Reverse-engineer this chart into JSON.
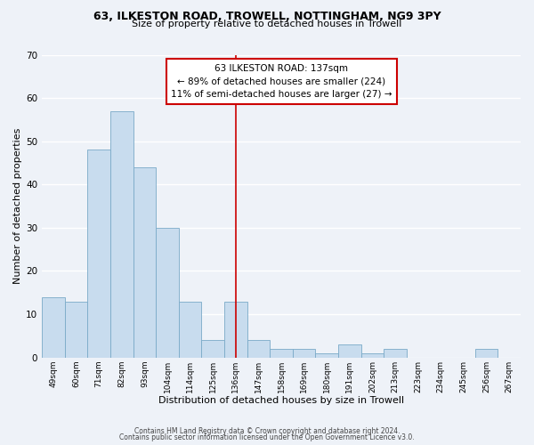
{
  "title1": "63, ILKESTON ROAD, TROWELL, NOTTINGHAM, NG9 3PY",
  "title2": "Size of property relative to detached houses in Trowell",
  "xlabel": "Distribution of detached houses by size in Trowell",
  "ylabel": "Number of detached properties",
  "bar_labels": [
    "49sqm",
    "60sqm",
    "71sqm",
    "82sqm",
    "93sqm",
    "104sqm",
    "114sqm",
    "125sqm",
    "136sqm",
    "147sqm",
    "158sqm",
    "169sqm",
    "180sqm",
    "191sqm",
    "202sqm",
    "213sqm",
    "223sqm",
    "234sqm",
    "245sqm",
    "256sqm",
    "267sqm"
  ],
  "bar_heights": [
    14,
    13,
    48,
    57,
    44,
    30,
    13,
    4,
    13,
    4,
    2,
    2,
    1,
    3,
    1,
    2,
    0,
    0,
    0,
    2,
    0
  ],
  "bar_color": "#c8dcee",
  "bar_edge_color": "#7aaac8",
  "vline_x_index": 8,
  "vline_color": "#cc0000",
  "annotation_text": "63 ILKESTON ROAD: 137sqm\n← 89% of detached houses are smaller (224)\n11% of semi-detached houses are larger (27) →",
  "annotation_box_color": "#ffffff",
  "annotation_box_edge": "#cc0000",
  "ylim": [
    0,
    70
  ],
  "yticks": [
    0,
    10,
    20,
    30,
    40,
    50,
    60,
    70
  ],
  "background_color": "#eef2f8",
  "footer1": "Contains HM Land Registry data © Crown copyright and database right 2024.",
  "footer2": "Contains public sector information licensed under the Open Government Licence v3.0."
}
